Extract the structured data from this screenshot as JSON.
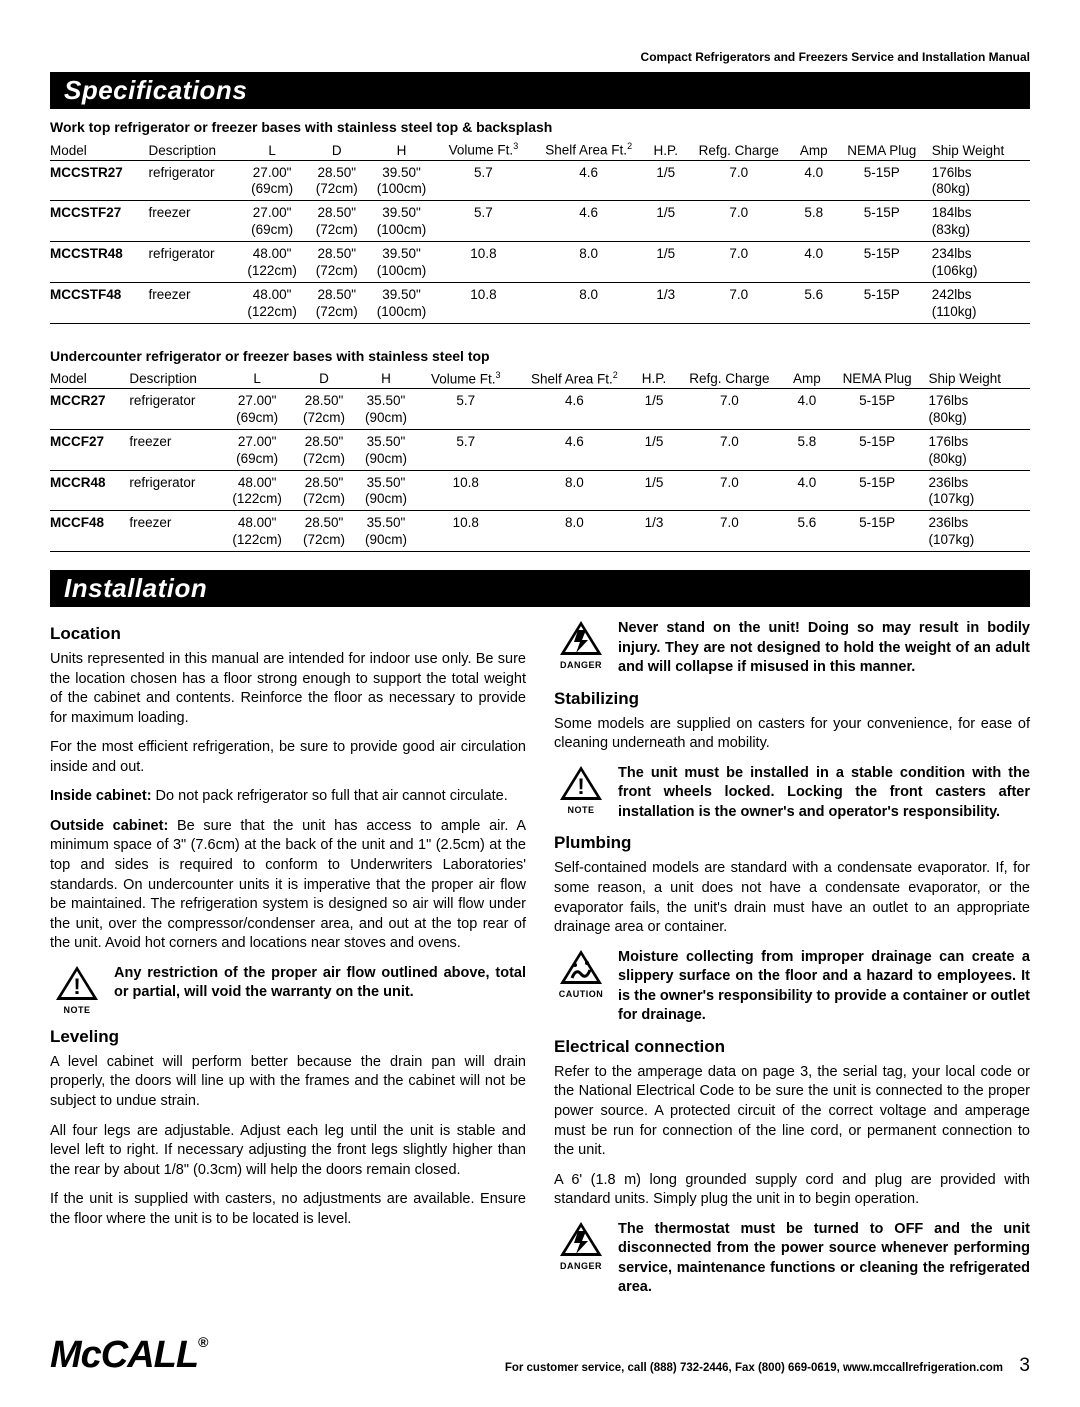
{
  "header": "Compact Refrigerators and Freezers Service and Installation Manual",
  "specs_title": "Specifications",
  "install_title": "Installation",
  "table1_title": "Work top refrigerator or freezer bases with stainless steel top & backsplash",
  "table2_title": "Undercounter refrigerator or freezer bases with stainless steel top",
  "columns": {
    "c0": "Model",
    "c1": "Description",
    "c2": "L",
    "c3": "D",
    "c4": "H",
    "c5a": "Volume Ft.",
    "c5b": "3",
    "c6a": "Shelf Area Ft.",
    "c6b": "2",
    "c7": "H.P.",
    "c8": "Refg. Charge",
    "c9": "Amp",
    "c10": "NEMA Plug",
    "c11": "Ship Weight"
  },
  "t1": [
    {
      "m": "MCCSTR27",
      "d": "refrigerator",
      "L": "27.00\"\n(69cm)",
      "D": "28.50\"\n(72cm)",
      "H": "39.50\"\n(100cm)",
      "V": "5.7",
      "S": "4.6",
      "HP": "1/5",
      "R": "7.0",
      "A": "4.0",
      "N": "5-15P",
      "W": "176lbs\n(80kg)"
    },
    {
      "m": "MCCSTF27",
      "d": "freezer",
      "L": "27.00\"\n(69cm)",
      "D": "28.50\"\n(72cm)",
      "H": "39.50\"\n(100cm)",
      "V": "5.7",
      "S": "4.6",
      "HP": "1/5",
      "R": "7.0",
      "A": "5.8",
      "N": "5-15P",
      "W": "184lbs\n(83kg)"
    },
    {
      "m": "MCCSTR48",
      "d": "refrigerator",
      "L": "48.00\"\n(122cm)",
      "D": "28.50\"\n(72cm)",
      "H": "39.50\"\n(100cm)",
      "V": "10.8",
      "S": "8.0",
      "HP": "1/5",
      "R": "7.0",
      "A": "4.0",
      "N": "5-15P",
      "W": "234lbs\n(106kg)"
    },
    {
      "m": "MCCSTF48",
      "d": "freezer",
      "L": "48.00\"\n(122cm)",
      "D": "28.50\"\n(72cm)",
      "H": "39.50\"\n(100cm)",
      "V": "10.8",
      "S": "8.0",
      "HP": "1/3",
      "R": "7.0",
      "A": "5.6",
      "N": "5-15P",
      "W": "242lbs\n(110kg)"
    }
  ],
  "t2": [
    {
      "m": "MCCR27",
      "d": "refrigerator",
      "L": "27.00\"\n(69cm)",
      "D": "28.50\"\n(72cm)",
      "H": "35.50\"\n(90cm)",
      "V": "5.7",
      "S": "4.6",
      "HP": "1/5",
      "R": "7.0",
      "A": "4.0",
      "N": "5-15P",
      "W": "176lbs\n(80kg)"
    },
    {
      "m": "MCCF27",
      "d": "freezer",
      "L": "27.00\"\n(69cm)",
      "D": "28.50\"\n(72cm)",
      "H": "35.50\"\n(90cm)",
      "V": "5.7",
      "S": "4.6",
      "HP": "1/5",
      "R": "7.0",
      "A": "5.8",
      "N": "5-15P",
      "W": "176lbs\n(80kg)"
    },
    {
      "m": "MCCR48",
      "d": "refrigerator",
      "L": "48.00\"\n(122cm)",
      "D": "28.50\"\n(72cm)",
      "H": "35.50\"\n(90cm)",
      "V": "10.8",
      "S": "8.0",
      "HP": "1/5",
      "R": "7.0",
      "A": "4.0",
      "N": "5-15P",
      "W": "236lbs\n(107kg)"
    },
    {
      "m": "MCCF48",
      "d": "freezer",
      "L": "48.00\"\n(122cm)",
      "D": "28.50\"\n(72cm)",
      "H": "35.50\"\n(90cm)",
      "V": "10.8",
      "S": "8.0",
      "HP": "1/3",
      "R": "7.0",
      "A": "5.6",
      "N": "5-15P",
      "W": "236lbs\n(107kg)"
    }
  ],
  "left": {
    "h_location": "Location",
    "p1": "Units represented in this manual are intended for indoor use only. Be sure the location chosen has a floor strong enough to support the total weight of the cabinet and contents. Reinforce the floor as necessary to provide for maximum loading.",
    "p2": "For the most efficient refrigeration, be sure to provide good air circulation inside and out.",
    "p3a": "Inside cabinet:",
    "p3b": " Do not pack refrigerator so full that air cannot circulate.",
    "p4a": "Outside cabinet:",
    "p4b": " Be sure that the unit has access to ample air. A minimum space of 3\" (7.6cm) at the back of the unit and 1\" (2.5cm) at the top and sides is required to conform to Underwriters Laboratories' standards. On undercounter units it is imperative that the proper air flow be maintained. The refrigeration system is designed so air will flow under the unit, over the compressor/condenser area, and out at the top rear of the unit. Avoid hot corners and locations near stoves and ovens.",
    "note1": "Any restriction of the proper air flow outlined above, total or partial, will void the warranty on the unit.",
    "h_leveling": "Leveling",
    "p5": "A level cabinet will perform better because the drain pan will drain properly, the doors will line up with the frames and the cabinet will not be subject to undue strain.",
    "p6": "All four legs are adjustable. Adjust each leg until the unit is stable and level left to right. If necessary adjusting the front legs slightly higher than the rear by about 1/8\" (0.3cm) will help the doors remain closed.",
    "p7": "If the unit is supplied with casters, no adjustments are available. Ensure the floor where the unit is to be located is level."
  },
  "right": {
    "danger1": "Never stand on the unit! Doing so may result in bodily injury. They are not designed to hold the weight of an adult and will collapse if misused in this manner.",
    "h_stab": "Stabilizing",
    "p1": "Some models are supplied on casters for your convenience, for ease of cleaning underneath and mobility.",
    "note1": "The unit must be installed in a stable condition with the front wheels locked. Locking the front casters after installation is the owner's and operator's responsibility.",
    "h_plumb": "Plumbing",
    "p2": "Self-contained models are standard with a condensate evaporator. If, for some reason, a unit does not have a condensate evaporator, or the evaporator fails, the unit's drain must have an outlet to an appropriate drainage area or container.",
    "caution1": "Moisture collecting from improper drainage can create a slippery surface on the floor and a hazard to employees. It is the owner's responsibility to provide a container or outlet for drainage.",
    "h_elec": "Electrical connection",
    "p3": "Refer to the amperage data on page 3, the serial tag, your local code or the National Electrical Code to be sure the unit is connected to the proper power source. A protected circuit of the correct voltage and amperage must be run for connection of the line cord, or permanent connection to the unit.",
    "p4": "A 6' (1.8 m) long grounded supply cord and plug are provided with standard units. Simply plug the unit in to begin operation.",
    "danger2": "The thermostat must be turned to OFF and the unit disconnected from the power source whenever performing service, maintenance functions or cleaning the refrigerated area."
  },
  "icons": {
    "note": "NOTE",
    "danger": "DANGER",
    "caution": "CAUTION"
  },
  "footer": {
    "logo": "McCALL",
    "reg": "®",
    "text": "For customer service, call (888) 732-2446, Fax (800) 669-0619, www.mccallrefrigeration.com",
    "page": "3"
  },
  "style": {
    "black": "#000000",
    "white": "#ffffff",
    "body_font_size": 14.5,
    "table_font_size": 13.5
  }
}
